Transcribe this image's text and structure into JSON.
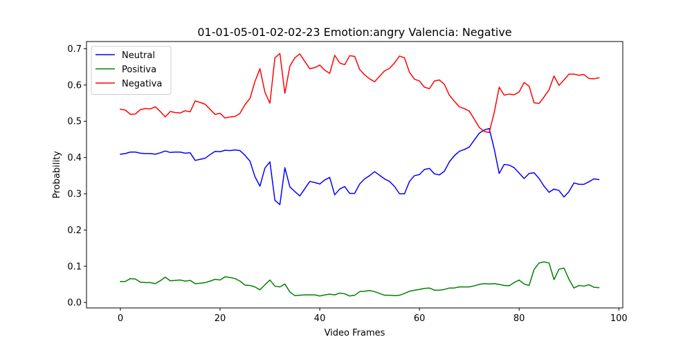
{
  "chart_data": {
    "type": "line",
    "title": "01-01-05-01-02-02-23 Emotion:angry Valencia: Negative",
    "xlabel": "Video Frames",
    "ylabel": "Probability",
    "xlim": [
      -6.8,
      100.8
    ],
    "ylim": [
      -0.015,
      0.72
    ],
    "xticks": [
      0,
      20,
      40,
      60,
      80,
      100
    ],
    "yticks": [
      0.0,
      0.1,
      0.2,
      0.3,
      0.4,
      0.5,
      0.6,
      0.7
    ],
    "xtick_labels": [
      "0",
      "20",
      "40",
      "60",
      "80",
      "100"
    ],
    "ytick_labels": [
      "0.0",
      "0.1",
      "0.2",
      "0.3",
      "0.4",
      "0.5",
      "0.6",
      "0.7"
    ],
    "grid": false,
    "legend_position": "top-left",
    "series": [
      {
        "name": "Neutral",
        "color": "#0000ff",
        "values": [
          0.409,
          0.411,
          0.415,
          0.415,
          0.412,
          0.411,
          0.411,
          0.409,
          0.413,
          0.418,
          0.414,
          0.415,
          0.415,
          0.412,
          0.413,
          0.392,
          0.395,
          0.398,
          0.408,
          0.417,
          0.416,
          0.42,
          0.419,
          0.421,
          0.419,
          0.406,
          0.39,
          0.347,
          0.321,
          0.371,
          0.388,
          0.282,
          0.27,
          0.372,
          0.319,
          0.306,
          0.294,
          0.314,
          0.334,
          0.331,
          0.327,
          0.338,
          0.345,
          0.297,
          0.313,
          0.32,
          0.301,
          0.301,
          0.327,
          0.341,
          0.35,
          0.361,
          0.351,
          0.341,
          0.334,
          0.32,
          0.3,
          0.3,
          0.334,
          0.35,
          0.353,
          0.367,
          0.37,
          0.355,
          0.352,
          0.362,
          0.388,
          0.405,
          0.417,
          0.422,
          0.429,
          0.448,
          0.467,
          0.476,
          0.48,
          0.424,
          0.356,
          0.381,
          0.379,
          0.372,
          0.357,
          0.342,
          0.356,
          0.358,
          0.342,
          0.321,
          0.304,
          0.313,
          0.309,
          0.291,
          0.306,
          0.33,
          0.326,
          0.326,
          0.333,
          0.341,
          0.339
        ]
      },
      {
        "name": "Positiva",
        "color": "#008000",
        "values": [
          0.058,
          0.058,
          0.066,
          0.065,
          0.056,
          0.055,
          0.055,
          0.052,
          0.06,
          0.07,
          0.06,
          0.061,
          0.062,
          0.059,
          0.061,
          0.052,
          0.053,
          0.055,
          0.059,
          0.064,
          0.062,
          0.071,
          0.069,
          0.066,
          0.059,
          0.048,
          0.047,
          0.043,
          0.035,
          0.049,
          0.062,
          0.045,
          0.043,
          0.051,
          0.029,
          0.019,
          0.02,
          0.021,
          0.021,
          0.021,
          0.018,
          0.021,
          0.023,
          0.021,
          0.026,
          0.024,
          0.018,
          0.02,
          0.03,
          0.031,
          0.033,
          0.03,
          0.025,
          0.02,
          0.02,
          0.019,
          0.02,
          0.025,
          0.031,
          0.034,
          0.036,
          0.039,
          0.04,
          0.034,
          0.034,
          0.036,
          0.04,
          0.04,
          0.043,
          0.043,
          0.043,
          0.046,
          0.05,
          0.052,
          0.051,
          0.052,
          0.05,
          0.047,
          0.046,
          0.055,
          0.062,
          0.051,
          0.047,
          0.091,
          0.109,
          0.112,
          0.109,
          0.063,
          0.092,
          0.095,
          0.064,
          0.04,
          0.047,
          0.045,
          0.049,
          0.042,
          0.041
        ]
      },
      {
        "name": "Negativa",
        "color": "#ff0000",
        "values": [
          0.533,
          0.531,
          0.519,
          0.52,
          0.532,
          0.535,
          0.534,
          0.54,
          0.527,
          0.512,
          0.527,
          0.524,
          0.523,
          0.529,
          0.526,
          0.556,
          0.552,
          0.547,
          0.533,
          0.519,
          0.522,
          0.509,
          0.512,
          0.513,
          0.522,
          0.546,
          0.563,
          0.61,
          0.645,
          0.58,
          0.55,
          0.675,
          0.687,
          0.577,
          0.652,
          0.675,
          0.686,
          0.665,
          0.645,
          0.648,
          0.655,
          0.641,
          0.632,
          0.682,
          0.661,
          0.656,
          0.681,
          0.679,
          0.643,
          0.628,
          0.617,
          0.609,
          0.624,
          0.639,
          0.646,
          0.661,
          0.68,
          0.675,
          0.635,
          0.616,
          0.611,
          0.594,
          0.59,
          0.611,
          0.614,
          0.602,
          0.572,
          0.555,
          0.54,
          0.535,
          0.528,
          0.506,
          0.483,
          0.472,
          0.469,
          0.524,
          0.594,
          0.572,
          0.575,
          0.573,
          0.581,
          0.607,
          0.597,
          0.551,
          0.549,
          0.567,
          0.587,
          0.625,
          0.599,
          0.614,
          0.63,
          0.63,
          0.627,
          0.629,
          0.618,
          0.617,
          0.62
        ]
      }
    ]
  }
}
